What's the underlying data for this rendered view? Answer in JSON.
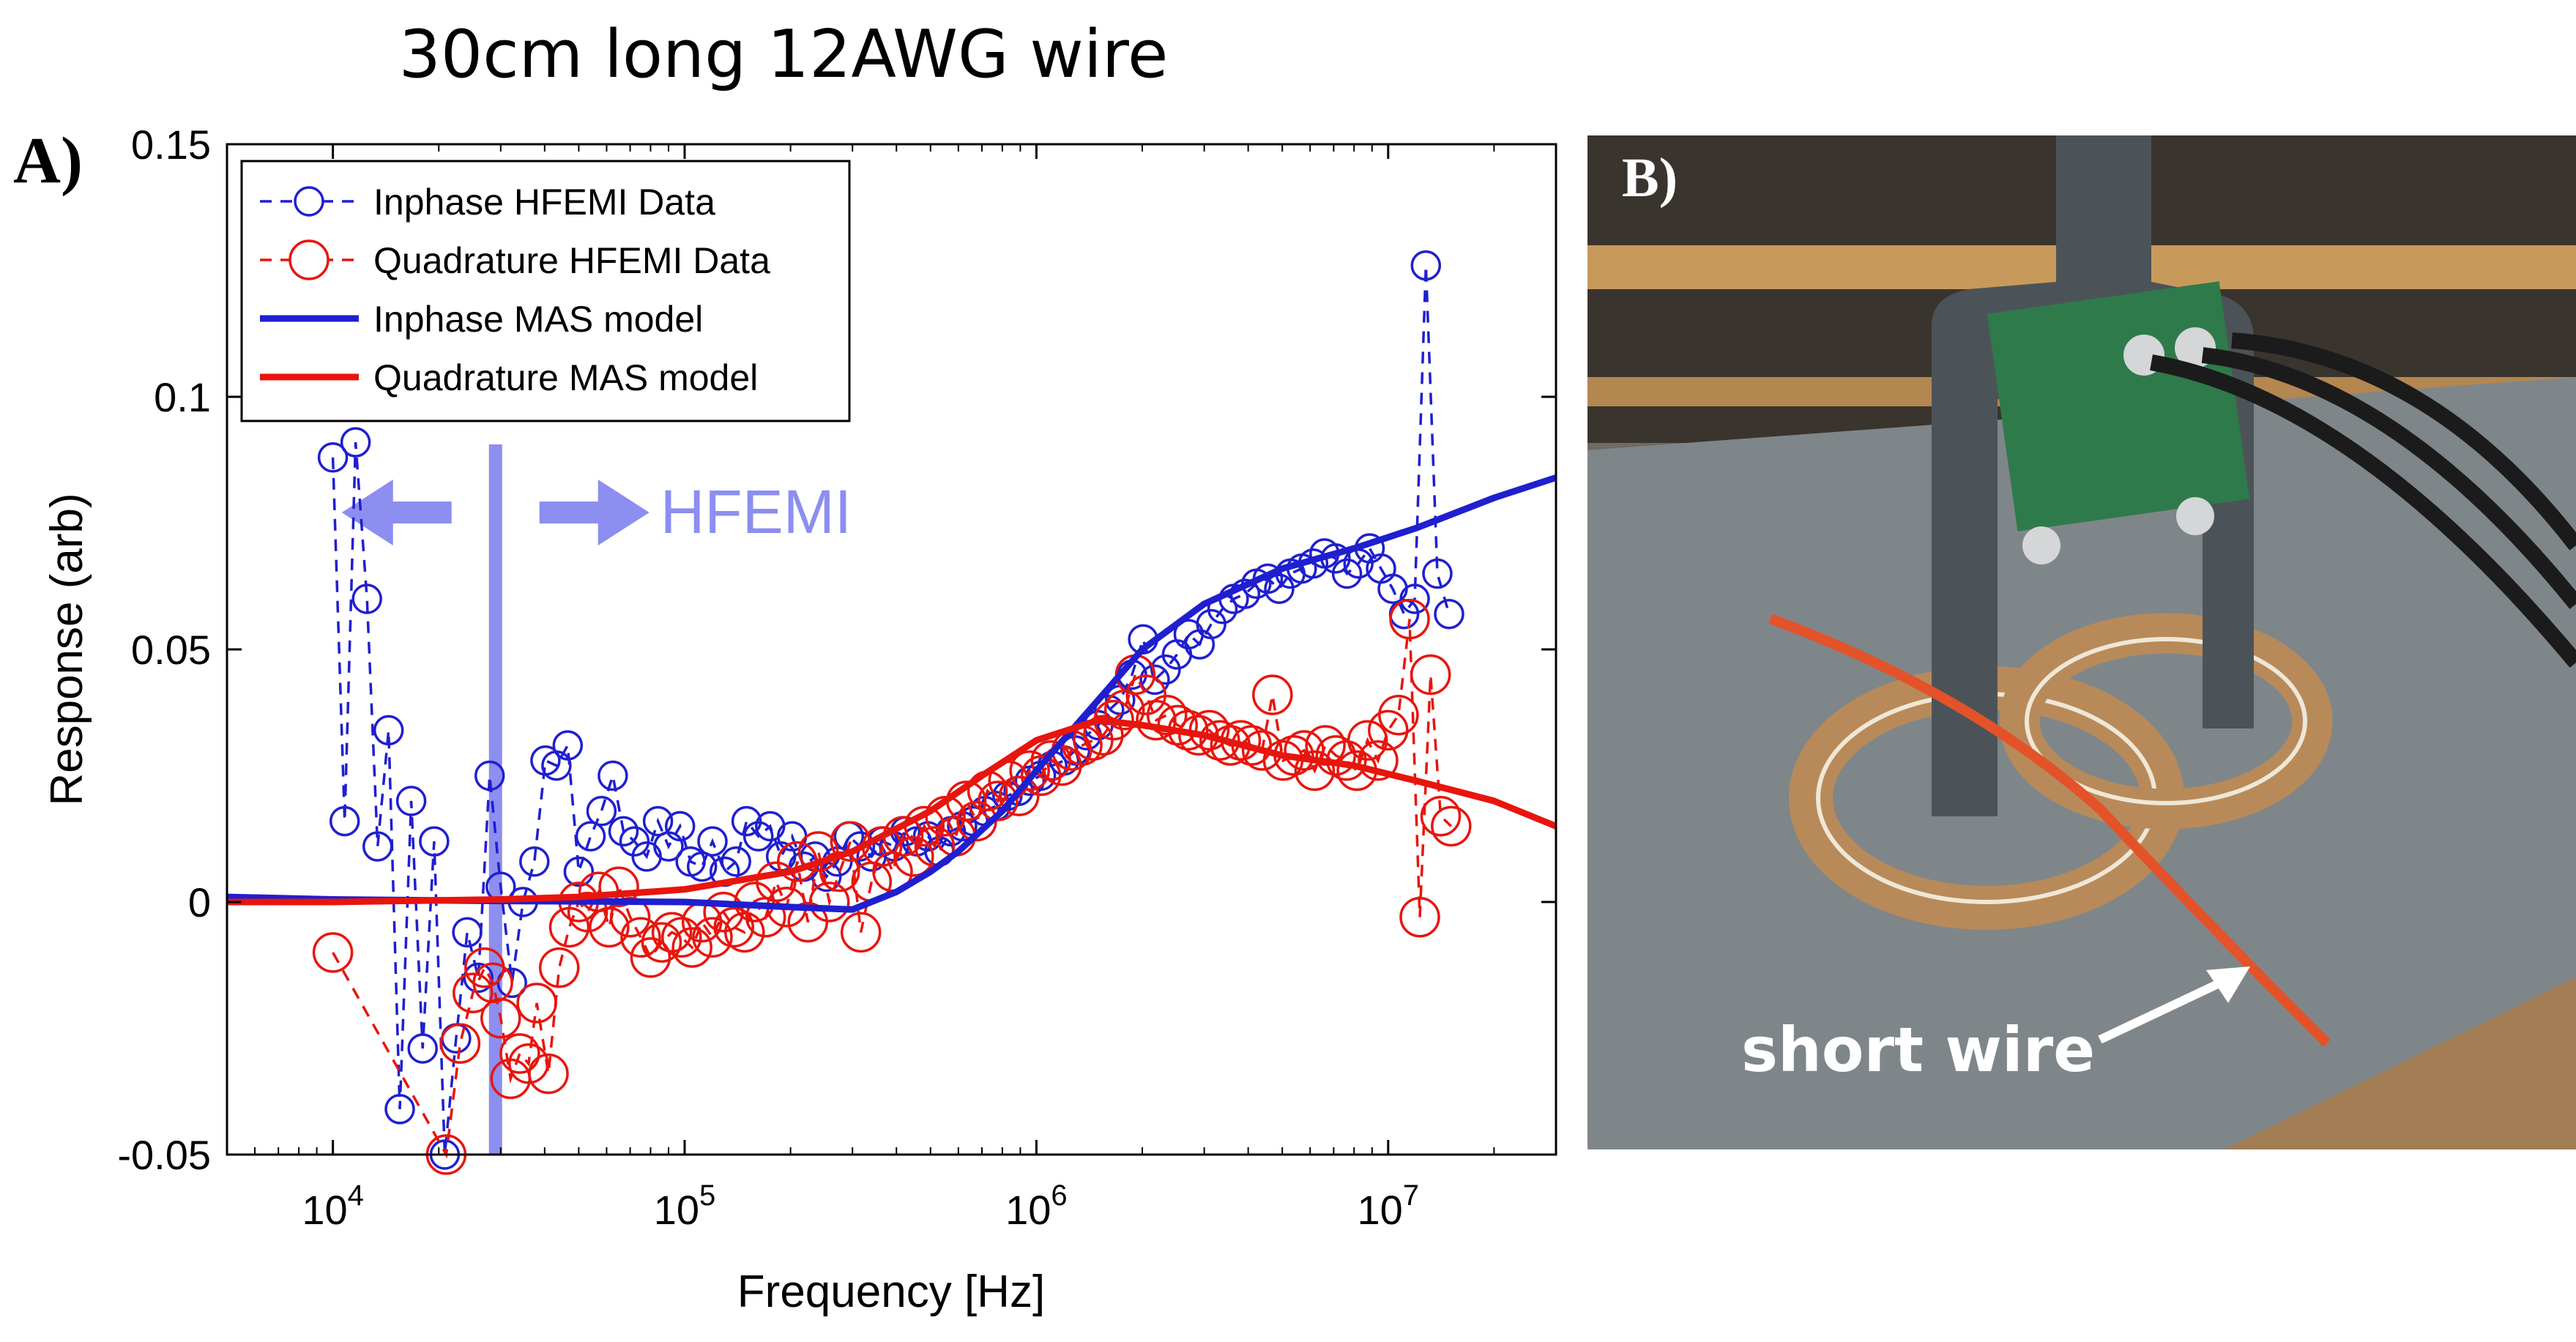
{
  "figure": {
    "title": "30cm long 12AWG  wire",
    "panel_a_label": "A)",
    "panel_b_label": "B)",
    "photo_caption": "short wire"
  },
  "colors": {
    "inphase": "#1f1fd0",
    "quadrature": "#e8150e",
    "hfemi_marker": "#8c8ef0"
  },
  "chart_data": {
    "type": "line",
    "xlabel": "Frequency [Hz]",
    "ylabel": "Response (arb)",
    "xscale": "log",
    "xlim": [
      5000,
      30000000
    ],
    "ylim": [
      -0.05,
      0.15
    ],
    "xticks": [
      10000,
      100000,
      1000000,
      10000000
    ],
    "xtick_labels": [
      {
        "base": "10",
        "exp": "4"
      },
      {
        "base": "10",
        "exp": "5"
      },
      {
        "base": "10",
        "exp": "6"
      },
      {
        "base": "10",
        "exp": "7"
      }
    ],
    "yticks": [
      -0.05,
      0,
      0.05,
      0.1,
      0.15
    ],
    "ytick_labels": [
      "-0.05",
      "0",
      "0.05",
      "0.1",
      "0.15"
    ],
    "grid": false,
    "legend_position": "top-left",
    "annotation": {
      "text": "HFEMI",
      "line_x": 29000
    },
    "series": [
      {
        "name": "Inphase  HFEMI Data",
        "style": "dashed-circle",
        "color": "#1f1fd0",
        "x": [
          10000,
          10800,
          11600,
          12500,
          13400,
          14400,
          15500,
          16700,
          18000,
          19400,
          20800,
          22400,
          24100,
          25900,
          27900,
          30000,
          32300,
          34700,
          37400,
          40200,
          43200,
          46500,
          50000,
          54000,
          58000,
          62500,
          67000,
          72000,
          78000,
          84000,
          90000,
          97000,
          104000,
          112000,
          120000,
          130000,
          140000,
          150000,
          162000,
          175000,
          188000,
          202000,
          218000,
          235000,
          253000,
          272000,
          293000,
          315000,
          340000,
          366000,
          394000,
          424000,
          457000,
          492000,
          530000,
          571000,
          615000,
          662000,
          713000,
          768000,
          827000,
          890000,
          958000,
          1030000,
          1110000,
          1200000,
          1290000,
          1390000,
          1500000,
          1610000,
          1730000,
          1870000,
          2010000,
          2170000,
          2330000,
          2510000,
          2710000,
          2910000,
          3140000,
          3380000,
          3640000,
          3920000,
          4220000,
          4550000,
          4900000,
          5270000,
          5680000,
          6120000,
          6590000,
          7090000,
          7640000,
          8230000,
          8860000,
          9540000,
          10300000,
          11100000,
          11900000,
          12800000,
          13800000,
          14900000
        ],
        "y": [
          0.088,
          0.016,
          0.091,
          0.06,
          0.011,
          0.034,
          -0.041,
          0.02,
          -0.029,
          0.012,
          -0.05,
          -0.027,
          -0.006,
          -0.015,
          0.025,
          0.003,
          -0.016,
          0.0,
          0.008,
          0.028,
          0.027,
          0.031,
          0.006,
          0.013,
          0.018,
          0.025,
          0.014,
          0.012,
          0.009,
          0.016,
          0.011,
          0.015,
          0.008,
          0.007,
          0.012,
          0.006,
          0.008,
          0.016,
          0.013,
          0.015,
          0.009,
          0.013,
          0.007,
          0.009,
          0.005,
          0.008,
          0.013,
          0.011,
          0.009,
          0.012,
          0.011,
          0.014,
          0.012,
          0.013,
          0.01,
          0.014,
          0.015,
          0.016,
          0.018,
          0.019,
          0.021,
          0.022,
          0.024,
          0.025,
          0.027,
          0.028,
          0.03,
          0.033,
          0.035,
          0.038,
          0.04,
          0.045,
          0.052,
          0.044,
          0.046,
          0.049,
          0.053,
          0.051,
          0.055,
          0.058,
          0.06,
          0.061,
          0.063,
          0.064,
          0.062,
          0.065,
          0.066,
          0.067,
          0.069,
          0.068,
          0.065,
          0.067,
          0.07,
          0.066,
          0.062,
          0.057,
          0.06,
          0.126,
          0.065,
          0.057
        ]
      },
      {
        "name": "Quadrature HFEMI Data",
        "style": "dashed-circle",
        "color": "#e8150e",
        "x": [
          10000,
          21000,
          23000,
          25000,
          27000,
          28500,
          30000,
          32000,
          34000,
          36000,
          38000,
          41000,
          44000,
          47000,
          50000,
          53000,
          57000,
          61000,
          65000,
          70000,
          75000,
          80000,
          86000,
          92000,
          98000,
          105000,
          112000,
          120000,
          129000,
          138000,
          148000,
          158000,
          170000,
          182000,
          195000,
          209000,
          224000,
          240000,
          258000,
          276000,
          296000,
          317000,
          340000,
          364000,
          390000,
          418000,
          448000,
          480000,
          514000,
          551000,
          590000,
          632000,
          677000,
          726000,
          778000,
          833000,
          893000,
          957000,
          1030000,
          1100000,
          1180000,
          1260000,
          1350000,
          1450000,
          1550000,
          1660000,
          1780000,
          1910000,
          2050000,
          2190000,
          2350000,
          2520000,
          2700000,
          2890000,
          3100000,
          3320000,
          3560000,
          3810000,
          4090000,
          4380000,
          4690000,
          5030000,
          5390000,
          5770000,
          6180000,
          6630000,
          7100000,
          7610000,
          8150000,
          8740000,
          9360000,
          10000000,
          10700000,
          11500000,
          12300000,
          13200000,
          14100000,
          15100000
        ],
        "y": [
          -0.01,
          -0.05,
          -0.028,
          -0.018,
          -0.013,
          -0.016,
          -0.023,
          -0.035,
          -0.03,
          -0.032,
          -0.02,
          -0.034,
          -0.013,
          -0.005,
          0.0,
          -0.002,
          0.002,
          -0.005,
          0.003,
          -0.003,
          -0.007,
          -0.011,
          -0.008,
          -0.006,
          -0.007,
          -0.009,
          -0.004,
          -0.007,
          -0.002,
          -0.005,
          -0.006,
          0.0,
          -0.003,
          0.004,
          -0.001,
          0.008,
          -0.004,
          0.01,
          0.0,
          0.006,
          0.012,
          -0.006,
          0.004,
          0.011,
          0.006,
          0.013,
          0.009,
          0.015,
          0.011,
          0.017,
          0.013,
          0.02,
          0.016,
          0.022,
          0.02,
          0.024,
          0.021,
          0.026,
          0.025,
          0.028,
          0.027,
          0.03,
          0.031,
          0.032,
          0.033,
          0.036,
          0.038,
          0.045,
          0.041,
          0.036,
          0.037,
          0.035,
          0.034,
          0.033,
          0.034,
          0.032,
          0.031,
          0.032,
          0.031,
          0.03,
          0.041,
          0.028,
          0.029,
          0.03,
          0.026,
          0.031,
          0.029,
          0.028,
          0.026,
          0.032,
          0.028,
          0.034,
          0.037,
          0.056,
          -0.003,
          0.045,
          0.017,
          0.015
        ]
      },
      {
        "name": "Inphase MAS model",
        "style": "solid",
        "color": "#1f1fd0",
        "x": [
          5000,
          10000,
          30000,
          100000,
          200000,
          300000,
          400000,
          500000,
          600000,
          800000,
          1000000,
          1500000,
          2000000,
          3000000,
          5000000,
          8000000,
          12000000,
          20000000,
          30000000
        ],
        "y": [
          0.001,
          0.0005,
          0.0002,
          0.0,
          -0.001,
          -0.0015,
          0.002,
          0.006,
          0.01,
          0.018,
          0.026,
          0.04,
          0.05,
          0.059,
          0.066,
          0.07,
          0.074,
          0.08,
          0.084
        ]
      },
      {
        "name": "Quadrature MAS model",
        "style": "solid",
        "color": "#e8150e",
        "x": [
          5000,
          10000,
          30000,
          50000,
          100000,
          200000,
          300000,
          500000,
          700000,
          1000000,
          1500000,
          2000000,
          3000000,
          5000000,
          8000000,
          12000000,
          20000000,
          30000000
        ],
        "y": [
          0.0,
          0.0,
          0.0005,
          0.001,
          0.0025,
          0.006,
          0.01,
          0.018,
          0.025,
          0.032,
          0.036,
          0.035,
          0.033,
          0.029,
          0.027,
          0.024,
          0.02,
          0.015
        ]
      }
    ]
  }
}
